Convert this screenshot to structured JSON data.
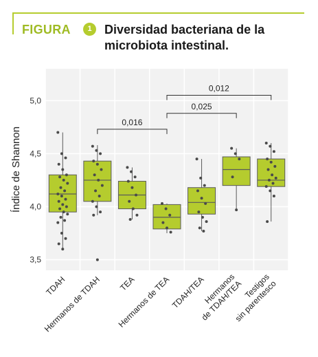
{
  "header": {
    "figure_label": "FIGURA",
    "figure_number": "1",
    "title": "Diversidad bacteriana de la microbiota intestinal."
  },
  "colors": {
    "accent": "#b5cc2e",
    "box_fill": "#b5cc2e",
    "box_stroke": "#5a5a5a",
    "points": "#4a4a4a",
    "grid": "#e3e3e3",
    "plot_bg": "#f2f2f2"
  },
  "chart_data": {
    "type": "box",
    "title": "Diversidad bacteriana de la microbiota intestinal.",
    "ylabel": "Índice de Shannon",
    "xlabel": "",
    "ylim": [
      3.4,
      5.3
    ],
    "yticks": [
      3.5,
      4.0,
      4.5,
      5.0
    ],
    "ytick_labels": [
      "3,5",
      "4,0",
      "4,5",
      "5,0"
    ],
    "grid": true,
    "categories": [
      [
        "TDAH"
      ],
      [
        "Hermanos de TDAH"
      ],
      [
        "TEA"
      ],
      [
        "Hermanos de TEA"
      ],
      [
        "TDAH/TEA"
      ],
      [
        "Hermanos",
        "de TDAH/TEA"
      ],
      [
        "Testigos",
        "sin parentesco"
      ]
    ],
    "boxes": [
      {
        "q1": 3.95,
        "median": 4.12,
        "q3": 4.3,
        "whisker_low": 3.6,
        "whisker_high": 4.7
      },
      {
        "q1": 4.05,
        "median": 4.25,
        "q3": 4.43,
        "whisker_low": 3.92,
        "whisker_high": 4.58
      },
      {
        "q1": 3.98,
        "median": 4.11,
        "q3": 4.24,
        "whisker_low": 3.88,
        "whisker_high": 4.37
      },
      {
        "q1": 3.79,
        "median": 3.9,
        "q3": 4.02,
        "whisker_low": 3.75,
        "whisker_high": 4.03
      },
      {
        "q1": 3.93,
        "median": 4.04,
        "q3": 4.18,
        "whisker_low": 3.77,
        "whisker_high": 4.45
      },
      {
        "q1": 4.2,
        "median": 4.35,
        "q3": 4.47,
        "whisker_low": 3.97,
        "whisker_high": 4.55
      },
      {
        "q1": 4.19,
        "median": 4.25,
        "q3": 4.45,
        "whisker_low": 3.86,
        "whisker_high": 4.6
      }
    ],
    "points": [
      [
        4.7,
        4.5,
        4.46,
        4.4,
        4.35,
        4.3,
        4.28,
        4.25,
        4.22,
        4.18,
        4.15,
        4.12,
        4.1,
        4.07,
        4.05,
        4.02,
        4.0,
        3.98,
        3.95,
        3.93,
        3.9,
        3.87,
        3.85,
        3.75,
        3.7,
        3.65,
        3.6
      ],
      [
        4.57,
        4.53,
        4.5,
        4.43,
        4.4,
        4.35,
        4.3,
        4.25,
        4.2,
        4.15,
        4.1,
        4.05,
        4.0,
        3.95,
        3.92,
        3.5
      ],
      [
        4.37,
        4.33,
        4.28,
        4.24,
        4.18,
        4.11,
        4.05,
        3.98,
        3.92,
        3.88
      ],
      [
        4.03,
        3.98,
        3.92,
        3.85,
        3.8,
        3.76
      ],
      [
        4.45,
        4.27,
        4.2,
        4.15,
        4.08,
        4.03,
        3.95,
        3.9,
        3.86,
        3.8,
        3.77
      ],
      [
        4.55,
        4.5,
        4.45,
        4.28,
        3.97
      ],
      [
        4.6,
        4.57,
        4.52,
        4.45,
        4.42,
        4.38,
        4.35,
        4.3,
        4.27,
        4.25,
        4.22,
        4.19,
        4.15,
        4.1,
        3.86
      ]
    ],
    "brackets": [
      {
        "from": 1,
        "to": 3,
        "y": 4.73,
        "label": "0,016"
      },
      {
        "from": 3,
        "to": 5,
        "y": 4.88,
        "label": "0,025"
      },
      {
        "from": 3,
        "to": 6,
        "y": 5.05,
        "label": "0,012"
      }
    ]
  }
}
